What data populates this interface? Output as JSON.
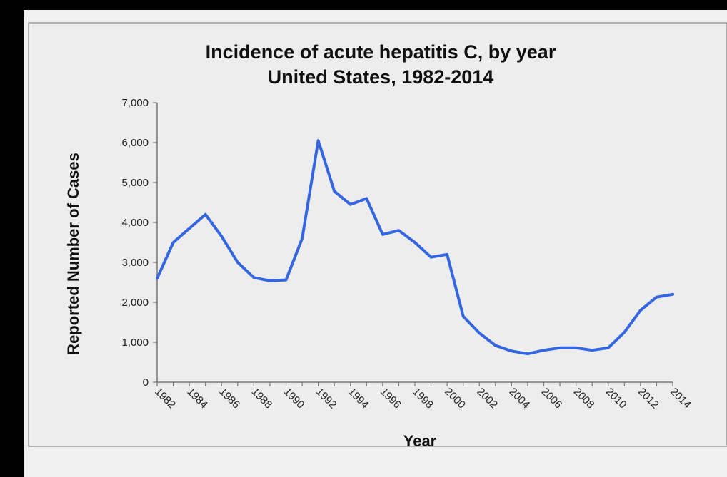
{
  "chart_data": {
    "type": "line",
    "title": "Incidence of acute hepatitis C, by year",
    "subtitle": "United States, 1982-2014",
    "xlabel": "Year",
    "ylabel": "Reported Number of Cases",
    "ylim": [
      0,
      7000
    ],
    "yticks": [
      "0",
      "1,000",
      "2,000",
      "3,000",
      "4,000",
      "5,000",
      "6,000",
      "7,000"
    ],
    "ytick_values": [
      0,
      1000,
      2000,
      3000,
      4000,
      5000,
      6000,
      7000
    ],
    "xticks": [
      "1982",
      "1984",
      "1986",
      "1988",
      "1990",
      "1992",
      "1994",
      "1996",
      "1998",
      "2000",
      "2002",
      "2004",
      "2006",
      "2008",
      "2010",
      "2012",
      "2014"
    ],
    "x": [
      1982,
      1983,
      1984,
      1985,
      1986,
      1987,
      1988,
      1989,
      1990,
      1991,
      1992,
      1993,
      1994,
      1995,
      1996,
      1997,
      1998,
      1999,
      2000,
      2001,
      2002,
      2003,
      2004,
      2005,
      2006,
      2007,
      2008,
      2009,
      2010,
      2011,
      2012,
      2013,
      2014
    ],
    "xlim": [
      1982,
      2014
    ],
    "series": [
      {
        "values": [
          2600,
          3500,
          3850,
          4200,
          3650,
          3000,
          2620,
          2540,
          2560,
          3600,
          6050,
          4780,
          4450,
          4600,
          3700,
          3800,
          3500,
          3130,
          3200,
          1650,
          1230,
          920,
          780,
          710,
          800,
          860,
          860,
          800,
          860,
          1250,
          1800,
          2130,
          2200
        ],
        "color": "#3366e0"
      }
    ],
    "grid": false,
    "legend": "none"
  }
}
